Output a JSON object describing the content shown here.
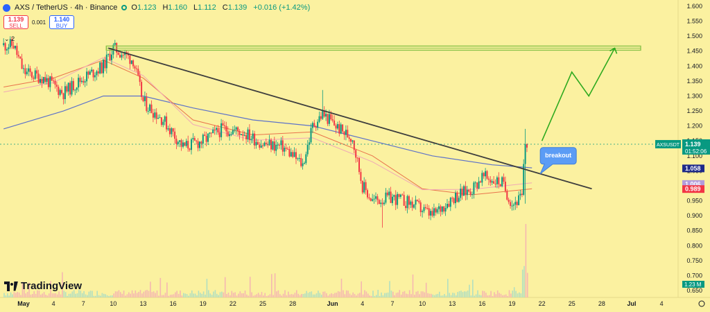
{
  "header": {
    "symbol_line": "AXS / TetherUS · 4h · Binance",
    "ohlc": [
      {
        "label": "O",
        "value": "1.123"
      },
      {
        "label": "H",
        "value": "1.160"
      },
      {
        "label": "L",
        "value": "1.112"
      },
      {
        "label": "C",
        "value": "1.139"
      }
    ],
    "change": "+0.016 (+1.42%)"
  },
  "trade": {
    "sell_price": "1.139",
    "sell_label": "SELL",
    "spread": "0.001",
    "buy_price": "1.140",
    "buy_label": "BUY"
  },
  "indicator_toggle": "2",
  "logo_text": "TradingView",
  "colors": {
    "background": "#fbf1a0",
    "up": "#089981",
    "down": "#f23645",
    "trendline": "#3d3d3d",
    "resistance": "#8bc34a",
    "projection": "#2eaa1f",
    "ma_blue": "#5d72c9",
    "ma_orange": "#e9734b",
    "ma_pink": "#f0a8b6"
  },
  "chart_data": {
    "type": "candlestick",
    "symbol": "AXSUSDT",
    "ylim": [
      0.65,
      1.6
    ],
    "y_ticks": [
      "1.600",
      "1.550",
      "1.500",
      "1.450",
      "1.400",
      "1.350",
      "1.300",
      "1.250",
      "1.200",
      "1.150",
      "1.100",
      "1.050",
      "1.000",
      "0.950",
      "0.900",
      "0.850",
      "0.800",
      "0.750",
      "0.700",
      "0.650"
    ],
    "x_ticks": [
      {
        "label": "May",
        "day": 1
      },
      {
        "label": "4",
        "day": 4
      },
      {
        "label": "7",
        "day": 7
      },
      {
        "label": "10",
        "day": 10
      },
      {
        "label": "13",
        "day": 13
      },
      {
        "label": "16",
        "day": 16
      },
      {
        "label": "19",
        "day": 19
      },
      {
        "label": "22",
        "day": 22
      },
      {
        "label": "25",
        "day": 25
      },
      {
        "label": "28",
        "day": 28
      },
      {
        "label": "Jun",
        "day": 32
      },
      {
        "label": "4",
        "day": 35
      },
      {
        "label": "7",
        "day": 38
      },
      {
        "label": "10",
        "day": 41
      },
      {
        "label": "13",
        "day": 44
      },
      {
        "label": "16",
        "day": 47
      },
      {
        "label": "19",
        "day": 50
      },
      {
        "label": "22",
        "day": 53
      },
      {
        "label": "25",
        "day": 56
      },
      {
        "label": "28",
        "day": 59
      },
      {
        "label": "Jul",
        "day": 62
      },
      {
        "label": "4",
        "day": 65
      }
    ],
    "price_path": [
      [
        0,
        1.47
      ],
      [
        1,
        1.38
      ],
      [
        3,
        1.36
      ],
      [
        5,
        1.31
      ],
      [
        7,
        1.36
      ],
      [
        9,
        1.4
      ],
      [
        10,
        1.46
      ],
      [
        12,
        1.42
      ],
      [
        13,
        1.28
      ],
      [
        15,
        1.22
      ],
      [
        17,
        1.13
      ],
      [
        19,
        1.15
      ],
      [
        21,
        1.19
      ],
      [
        23,
        1.18
      ],
      [
        25,
        1.14
      ],
      [
        27,
        1.13
      ],
      [
        29,
        1.07
      ],
      [
        30,
        1.2
      ],
      [
        31,
        1.24
      ],
      [
        33,
        1.18
      ],
      [
        34,
        1.16
      ],
      [
        35,
        1.0
      ],
      [
        36,
        0.95
      ],
      [
        38,
        0.96
      ],
      [
        40,
        0.94
      ],
      [
        42,
        0.9
      ],
      [
        44,
        0.96
      ],
      [
        46,
        0.99
      ],
      [
        47,
        1.03
      ],
      [
        49,
        1.01
      ],
      [
        50,
        0.94
      ],
      [
        51,
        0.96
      ],
      [
        51.3,
        1.14
      ],
      [
        51.6,
        1.139
      ]
    ],
    "resistance_level": 1.46,
    "trendline": [
      [
        9.5,
        1.46
      ],
      [
        58,
        0.99
      ]
    ],
    "projection_path": [
      [
        53,
        1.15
      ],
      [
        56,
        1.38
      ],
      [
        57.7,
        1.3
      ],
      [
        60.3,
        1.46
      ]
    ],
    "ma_long_path": [
      [
        -1,
        1.19
      ],
      [
        5,
        1.25
      ],
      [
        9,
        1.3
      ],
      [
        13,
        1.3
      ],
      [
        18,
        1.26
      ],
      [
        24,
        1.22
      ],
      [
        30,
        1.2
      ],
      [
        36,
        1.15
      ],
      [
        42,
        1.1
      ],
      [
        48,
        1.07
      ],
      [
        52,
        1.06
      ]
    ],
    "ma_mid_path": [
      [
        -1,
        1.33
      ],
      [
        4,
        1.36
      ],
      [
        9,
        1.42
      ],
      [
        13,
        1.36
      ],
      [
        18,
        1.22
      ],
      [
        24,
        1.17
      ],
      [
        30,
        1.18
      ],
      [
        36,
        1.1
      ],
      [
        41,
        0.99
      ],
      [
        46,
        0.97
      ],
      [
        52,
        0.99
      ]
    ],
    "volume": {
      "peak_day": 51.3,
      "peak_label": "1.23 M"
    },
    "annotation": {
      "text": "breakout",
      "day": 54.5,
      "price": 1.1
    },
    "price_labels": [
      {
        "text": "AXSUSDT",
        "value": 1.139,
        "color": "#089981"
      },
      {
        "text": "1.139",
        "value": 1.139,
        "color": "#089981"
      },
      {
        "text": "01:52:06",
        "value": 1.139,
        "color": "#089981"
      },
      {
        "text": "1.058",
        "value": 1.058,
        "color": "#1e2a8a"
      },
      {
        "text": "1.006",
        "value": 1.006,
        "color": "#b39ddb"
      },
      {
        "text": "0.989",
        "value": 0.989,
        "color": "#f23645"
      }
    ],
    "volume_label": "1.23 M"
  }
}
